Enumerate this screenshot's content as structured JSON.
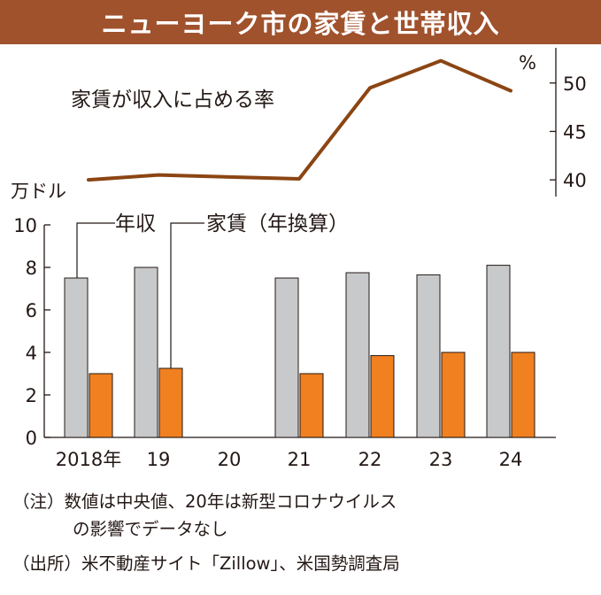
{
  "title": "ニューヨーク市の家賃と世帯収入",
  "colors": {
    "title_bg": "#a0522d",
    "line": "#8b4513",
    "income_bar": "#c8c9ca",
    "rent_bar": "#f08020",
    "axis": "#231815"
  },
  "chart_data": [
    {
      "type": "line",
      "series": [
        {
          "name": "家賃が収入に占める率",
          "values": [
            40,
            40.5,
            40.3,
            40.1,
            49.5,
            52.3,
            49.2
          ]
        }
      ],
      "x": [
        "2018年",
        "19",
        "20",
        "21",
        "22",
        "23",
        "24"
      ],
      "yunit": "%",
      "ylim": [
        38,
        54
      ],
      "yticks": [
        40,
        45,
        50
      ],
      "ytick_labels": [
        "40",
        "45",
        "50"
      ],
      "axis_side": "right"
    },
    {
      "type": "bar",
      "categories": [
        "2018年",
        "19",
        "20",
        "21",
        "22",
        "23",
        "24"
      ],
      "series": [
        {
          "name": "年収",
          "values": [
            7.5,
            8.0,
            null,
            7.5,
            7.75,
            7.65,
            8.1
          ]
        },
        {
          "name": "家賃（年換算）",
          "values": [
            3.0,
            3.25,
            null,
            3.0,
            3.85,
            4.0,
            4.0
          ]
        }
      ],
      "yunit": "万ドル",
      "ylim": [
        0,
        10
      ],
      "yticks": [
        0,
        2,
        4,
        6,
        8,
        10
      ],
      "ytick_labels": [
        "0",
        "2",
        "4",
        "6",
        "8",
        "10"
      ]
    }
  ],
  "notes": {
    "note_line1": "（注）数値は中央値、20年は新型コロナウイルス",
    "note_line2": "の影響でデータなし",
    "source": "（出所）米不動産サイト「Zillow」、米国勢調査局"
  }
}
